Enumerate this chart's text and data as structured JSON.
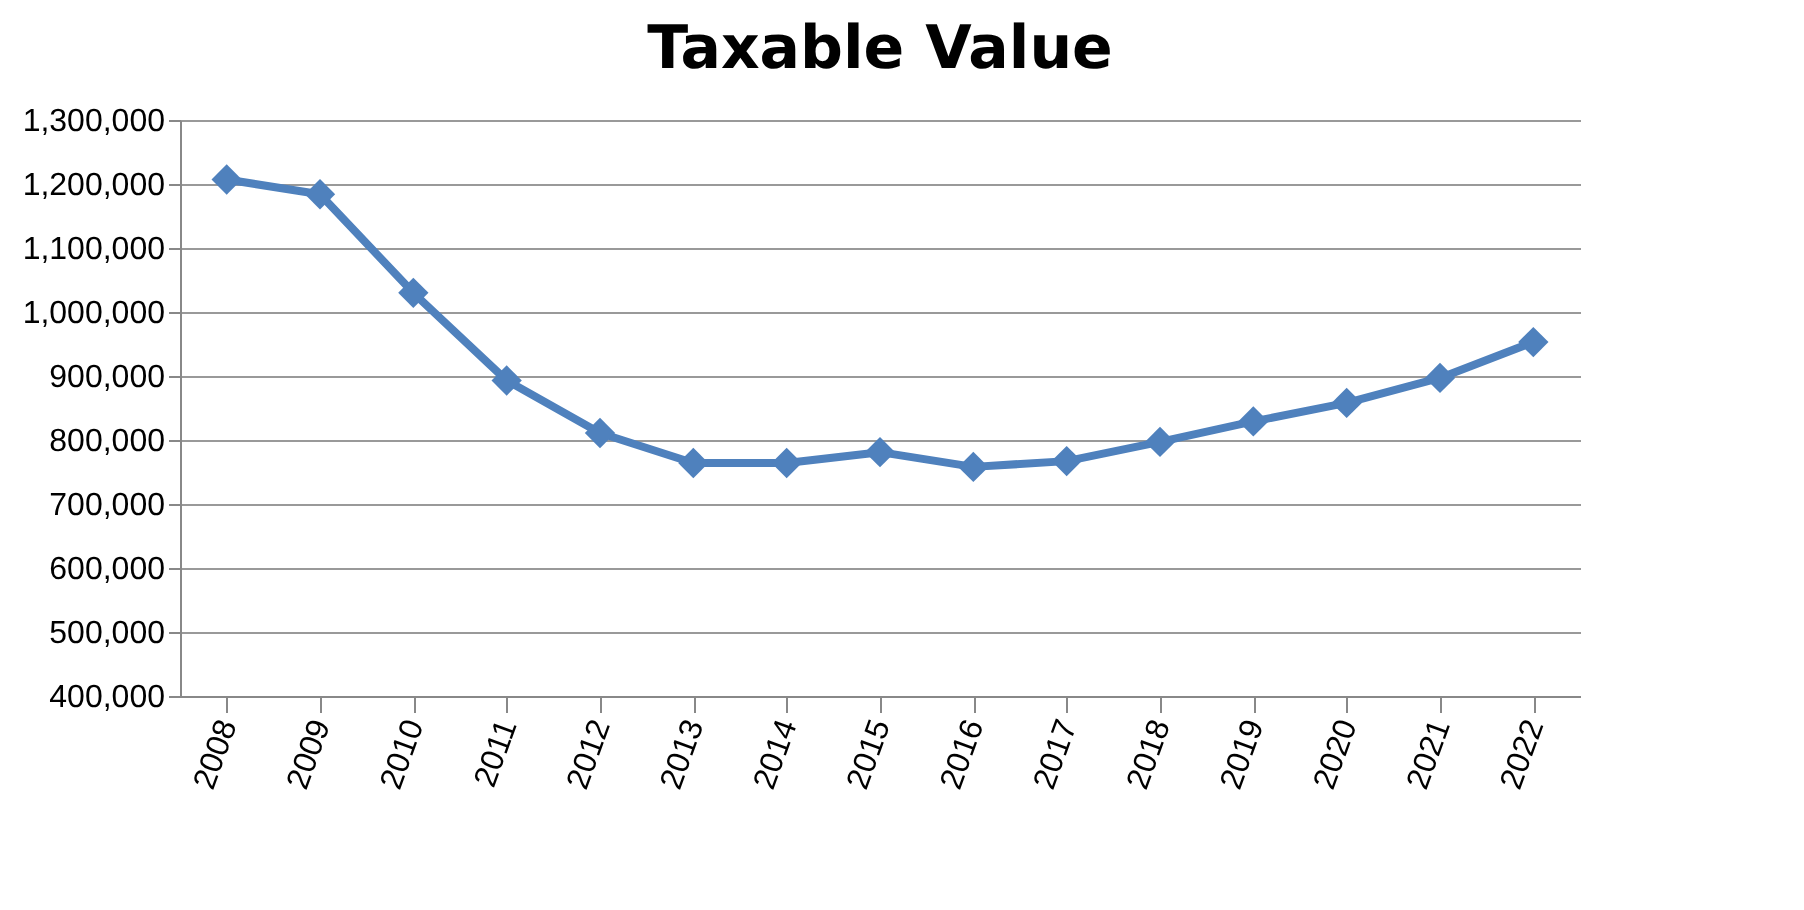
{
  "chart_data": {
    "type": "line",
    "title": "Taxable Value",
    "categories": [
      "2008",
      "2009",
      "2010",
      "2011",
      "2012",
      "2013",
      "2014",
      "2015",
      "2016",
      "2017",
      "2018",
      "2019",
      "2020",
      "2021",
      "2022"
    ],
    "series": [
      {
        "color": "#4f81bd",
        "values": [
          1207000,
          1184000,
          1030000,
          893000,
          811000,
          764000,
          764000,
          781000,
          758000,
          767000,
          797000,
          829000,
          858000,
          897000,
          953000
        ]
      }
    ],
    "ylim": [
      400000,
      1300000
    ],
    "yticks": [
      {
        "value": 400000,
        "label": "400,000"
      },
      {
        "value": 500000,
        "label": "500,000"
      },
      {
        "value": 600000,
        "label": "600,000"
      },
      {
        "value": 700000,
        "label": "700,000"
      },
      {
        "value": 800000,
        "label": "800,000"
      },
      {
        "value": 900000,
        "label": "900,000"
      },
      {
        "value": 1000000,
        "label": "1,000,000"
      },
      {
        "value": 1100000,
        "label": "1,100,000"
      },
      {
        "value": 1200000,
        "label": "1,200,000"
      },
      {
        "value": 1300000,
        "label": "1,300,000"
      }
    ],
    "grid": "y",
    "marker": "diamond",
    "legend": false
  }
}
